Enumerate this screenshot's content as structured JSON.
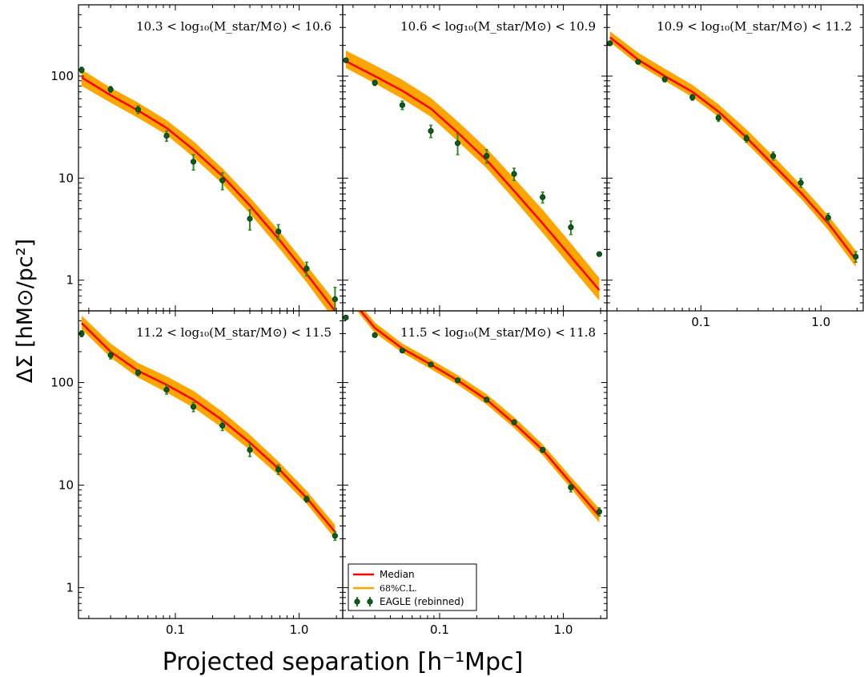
{
  "colors": {
    "median": "#ff0000",
    "band": "#ffa500",
    "points": "#0b5d1e",
    "errorbars": "#2e8b22"
  },
  "chart_data": {
    "type": "line",
    "xlabel": "Projected separation  [h⁻¹Mpc]",
    "ylabel": "ΔΣ [hM⊙/pc²]",
    "x_scale": "log",
    "y_scale": "log",
    "xlim": [
      0.0165,
      2.25
    ],
    "x_ticks": [
      0.1,
      1.0
    ],
    "x_tick_labels": [
      "0.1",
      "1.0"
    ],
    "legend": {
      "placement": "lower-left of panel 5",
      "entries": [
        "Median",
        "68%C.L.",
        "EAGLE (rebinned)"
      ]
    },
    "panels": [
      {
        "label": "10.3 < log₁₀(M_star/M⊙) < 10.6",
        "ylim": [
          0.5,
          500
        ],
        "y_ticks": [
          1,
          10,
          100
        ],
        "y_tick_labels": [
          "1",
          "10",
          "100"
        ],
        "median": {
          "x": [
            0.0175,
            0.03,
            0.05,
            0.085,
            0.14,
            0.24,
            0.4,
            0.68,
            1.15,
            1.95
          ],
          "y": [
            97,
            65,
            46,
            31,
            19,
            10.5,
            5.4,
            2.55,
            1.15,
            0.5
          ]
        },
        "band_low": [
          80,
          55,
          39,
          26.5,
          16,
          8.8,
          4.5,
          2.1,
          0.95,
          0.4
        ],
        "band_high": [
          116,
          77,
          55,
          37,
          23,
          12.5,
          6.5,
          3.1,
          1.4,
          0.62
        ],
        "eagle": {
          "x": [
            0.0175,
            0.03,
            0.05,
            0.085,
            0.14,
            0.24,
            0.4,
            0.68,
            1.15,
            1.95
          ],
          "y": [
            115,
            74,
            47,
            26,
            14.5,
            9.5,
            4.0,
            3.0,
            1.3,
            0.65
          ],
          "err": [
            7,
            5,
            4,
            3,
            2.5,
            1.8,
            0.9,
            0.5,
            0.2,
            0.2
          ]
        }
      },
      {
        "label": "10.6 < log₁₀(M_star/M⊙) < 10.9",
        "ylim": [
          0.5,
          500
        ],
        "y_ticks": [
          1,
          10,
          100
        ],
        "y_tick_labels": [
          "",
          "",
          ""
        ],
        "median": {
          "x": [
            0.0175,
            0.03,
            0.05,
            0.085,
            0.14,
            0.24,
            0.4,
            0.68,
            1.15,
            1.95
          ],
          "y": [
            140,
            100,
            72,
            48,
            28,
            15,
            7.5,
            3.6,
            1.7,
            0.8
          ]
        },
        "band_low": [
          120,
          85,
          60,
          40,
          23,
          12.5,
          6.2,
          2.9,
          1.35,
          0.63
        ],
        "band_high": [
          178,
          128,
          92,
          61,
          36,
          19.5,
          10,
          4.9,
          2.3,
          1.05
        ],
        "eagle": {
          "x": [
            0.0175,
            0.03,
            0.05,
            0.085,
            0.14,
            0.24,
            0.4,
            0.68,
            1.15,
            1.95
          ],
          "y": [
            143,
            86,
            52,
            29,
            22,
            16.5,
            11,
            6.5,
            3.3,
            1.8
          ],
          "err": [
            6,
            5,
            5,
            4,
            5,
            2.5,
            1.5,
            0.8,
            0.5,
            0.05
          ]
        }
      },
      {
        "label": "10.9 < log₁₀(M_star/M⊙) < 11.2",
        "ylim": [
          0.5,
          500
        ],
        "y_ticks": [
          1,
          10,
          100
        ],
        "y_tick_labels": [
          "",
          "",
          ""
        ],
        "median": {
          "x": [
            0.0175,
            0.03,
            0.05,
            0.085,
            0.14,
            0.24,
            0.4,
            0.68,
            1.15,
            1.95
          ],
          "y": [
            240,
            145,
            100,
            70,
            45,
            25,
            13.5,
            7.2,
            3.6,
            1.6
          ]
        },
        "band_low": [
          215,
          130,
          90,
          62,
          40,
          22,
          12,
          6.3,
          3.1,
          1.35
        ],
        "band_high": [
          275,
          170,
          118,
          82,
          53,
          30,
          16.5,
          8.6,
          4.3,
          1.95
        ],
        "eagle": {
          "x": [
            0.0175,
            0.03,
            0.05,
            0.085,
            0.14,
            0.24,
            0.4,
            0.68,
            1.15,
            1.95
          ],
          "y": [
            210,
            138,
            93,
            62,
            39,
            24.5,
            16.5,
            9.0,
            4.1,
            1.7
          ],
          "err": [
            8,
            6,
            5,
            4,
            3,
            2,
            1.5,
            0.9,
            0.4,
            0.2
          ]
        }
      },
      {
        "label": "11.2 < log₁₀(M_star/M⊙) < 11.5",
        "ylim": [
          0.5,
          500
        ],
        "y_ticks": [
          1,
          10,
          100
        ],
        "y_tick_labels": [
          "1",
          "10",
          "100"
        ],
        "median": {
          "x": [
            0.0175,
            0.03,
            0.05,
            0.085,
            0.14,
            0.24,
            0.4,
            0.68,
            1.15,
            1.95
          ],
          "y": [
            380,
            200,
            130,
            95,
            68,
            43,
            26,
            14.5,
            7.5,
            3.5
          ]
        },
        "band_low": [
          330,
          175,
          112,
          80,
          57,
          36,
          22,
          12.5,
          6.6,
          3.0
        ],
        "band_high": [
          450,
          240,
          155,
          115,
          83,
          52,
          31,
          17,
          8.8,
          4.1
        ],
        "eagle": {
          "x": [
            0.0175,
            0.03,
            0.05,
            0.085,
            0.14,
            0.24,
            0.4,
            0.68,
            1.15,
            1.95
          ],
          "y": [
            300,
            185,
            125,
            85,
            58,
            38,
            22,
            14.2,
            7.3,
            3.2
          ],
          "err": [
            20,
            15,
            8,
            8,
            6,
            4,
            3,
            1.5,
            0.5,
            0.3
          ]
        }
      },
      {
        "label": "11.5 < log₁₀(M_star/M⊙) < 11.8",
        "ylim": [
          0.5,
          500
        ],
        "y_ticks": [
          1,
          10,
          100
        ],
        "y_tick_labels": [
          "",
          "",
          ""
        ],
        "median": {
          "x": [
            0.0175,
            0.03,
            0.05,
            0.085,
            0.14,
            0.24,
            0.4,
            0.68,
            1.15,
            1.95
          ],
          "y": [
            750,
            340,
            215,
            150,
            105,
            68,
            40,
            22,
            10.5,
            5.0
          ]
        },
        "band_low": [
          680,
          305,
          195,
          135,
          95,
          61,
          36,
          19.5,
          9.3,
          4.3
        ],
        "band_high": [
          840,
          385,
          240,
          168,
          118,
          77,
          46,
          25,
          12,
          5.9
        ],
        "eagle": {
          "x": [
            0.0175,
            0.03,
            0.05,
            0.085,
            0.14,
            0.24,
            0.4,
            0.68,
            1.15,
            1.95
          ],
          "y": [
            430,
            290,
            205,
            150,
            105,
            68,
            41,
            22,
            9.5,
            5.5
          ],
          "err": [
            10,
            8,
            8,
            5,
            4,
            3,
            2,
            1.2,
            0.9,
            0.5
          ]
        }
      }
    ]
  }
}
